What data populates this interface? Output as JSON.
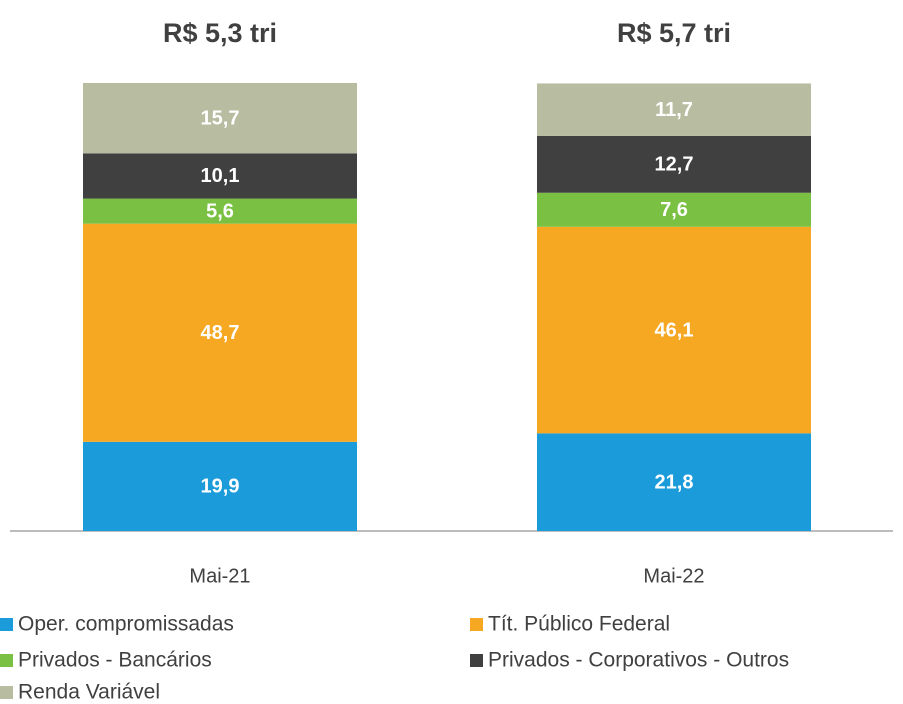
{
  "chart_data": {
    "type": "stacked_bar",
    "categories": [
      "Mai-21",
      "Mai-22"
    ],
    "bar_totals": [
      "R$ 5,3 tri",
      "R$ 5,7 tri"
    ],
    "ylim": [
      0,
      100
    ],
    "series": [
      {
        "name": " Oper. compromissadas",
        "color": "#1b9bd9",
        "values": [
          19.9,
          21.8
        ],
        "value_labels": [
          "19,9",
          "21,8"
        ]
      },
      {
        "name": "Tít. Público Federal",
        "color": "#f6a823",
        "values": [
          48.7,
          46.1
        ],
        "value_labels": [
          "48,7",
          "46,1"
        ]
      },
      {
        "name": "Privados - Bancários",
        "color": "#7ac143",
        "values": [
          5.6,
          7.6
        ],
        "value_labels": [
          "5,6",
          "7,6"
        ]
      },
      {
        "name": "Privados - Corporativos - Outros",
        "color": "#404040",
        "values": [
          10.1,
          12.7
        ],
        "value_labels": [
          "10,1",
          "12,7"
        ]
      },
      {
        "name": "Renda Variável",
        "color": "#b8bca0",
        "values": [
          15.7,
          11.7
        ],
        "value_labels": [
          "15,7",
          "11,7"
        ]
      }
    ]
  }
}
